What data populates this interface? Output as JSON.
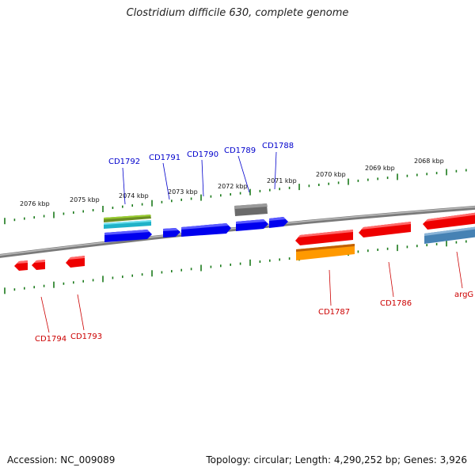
{
  "title": "Clostridium difficile 630, complete genome",
  "footer": {
    "accession": "Accession: NC_009089",
    "summary": "Topology: circular; Length: 4,290,252 bp; Genes: 3,926"
  },
  "colors": {
    "backbone": "#7a7a7a",
    "tick": "#1a7a1a",
    "forward_gene": "#0000ee",
    "reverse_gene": "#ee0000",
    "forward_label": "#0000cc",
    "reverse_label": "#cc0000"
  },
  "kbp_labels": [
    "2076 kbp",
    "2075 kbp",
    "2074 kbp",
    "2073 kbp",
    "2072 kbp",
    "2071 kbp",
    "2070 kbp",
    "2069 kbp",
    "2068 kbp"
  ],
  "forward_genes": [
    "CD1792",
    "CD1791",
    "CD1790",
    "CD1789",
    "CD1788"
  ],
  "reverse_genes": [
    "CD1794",
    "CD1793",
    "CD1787",
    "CD1786",
    "argG"
  ]
}
